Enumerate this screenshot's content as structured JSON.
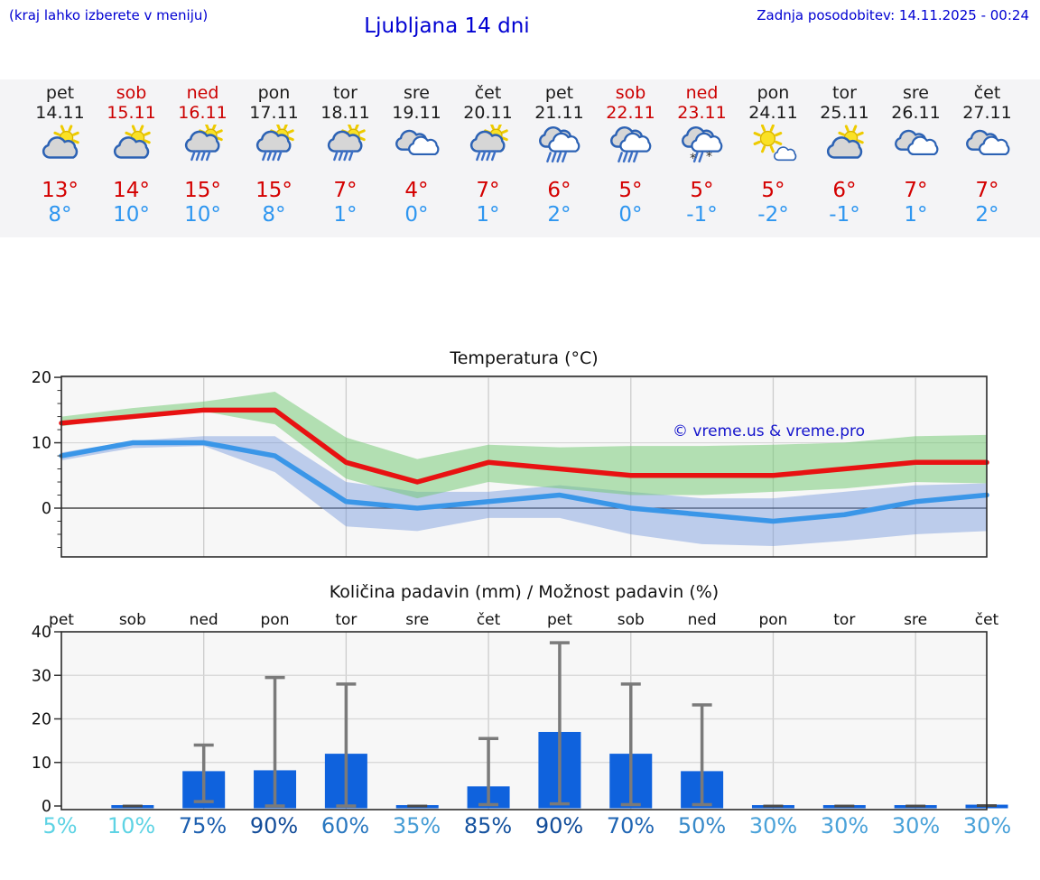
{
  "header": {
    "hint": "(kraj lahko izberete v meniju)",
    "title": "Ljubljana 14 dni",
    "last_update": "Zadnja posodobitev: 14.11.2025 - 00:24"
  },
  "colors": {
    "header_text": "#0000d2",
    "weekday_text": "#1a1a1a",
    "weekend_text": "#cc0000",
    "max_temp_text": "#d40000",
    "min_temp_text": "#2e96f0",
    "line_max": "#e81212",
    "line_min": "#3a96e8",
    "band_max": "rgba(110,200,110,0.5)",
    "band_min": "rgba(115,150,220,0.45)",
    "bar": "#0f62dd",
    "whisker": "#7a7a7a",
    "plot_bg": "#f7f7f7",
    "grid": "#cccccc",
    "axis": "#2b2b2b"
  },
  "days": [
    {
      "name": "pet",
      "date": "14.11",
      "weekend": false,
      "icon": "partly-cloudy",
      "tmax": "13°",
      "tmin": "8°"
    },
    {
      "name": "sob",
      "date": "15.11",
      "weekend": true,
      "icon": "partly-cloudy",
      "tmax": "14°",
      "tmin": "10°"
    },
    {
      "name": "ned",
      "date": "16.11",
      "weekend": true,
      "icon": "sun-cloud-rain",
      "tmax": "15°",
      "tmin": "10°"
    },
    {
      "name": "pon",
      "date": "17.11",
      "weekend": false,
      "icon": "sun-cloud-rain",
      "tmax": "15°",
      "tmin": "8°"
    },
    {
      "name": "tor",
      "date": "18.11",
      "weekend": false,
      "icon": "sun-cloud-rain",
      "tmax": "7°",
      "tmin": "1°"
    },
    {
      "name": "sre",
      "date": "19.11",
      "weekend": false,
      "icon": "cloudy",
      "tmax": "4°",
      "tmin": "0°"
    },
    {
      "name": "čet",
      "date": "20.11",
      "weekend": false,
      "icon": "sun-cloud-rain",
      "tmax": "7°",
      "tmin": "1°"
    },
    {
      "name": "pet",
      "date": "21.11",
      "weekend": false,
      "icon": "cloud-rain",
      "tmax": "6°",
      "tmin": "2°"
    },
    {
      "name": "sob",
      "date": "22.11",
      "weekend": true,
      "icon": "cloud-rain",
      "tmax": "5°",
      "tmin": "0°"
    },
    {
      "name": "ned",
      "date": "23.11",
      "weekend": true,
      "icon": "cloud-sleet",
      "tmax": "5°",
      "tmin": "-1°"
    },
    {
      "name": "pon",
      "date": "24.11",
      "weekend": false,
      "icon": "mostly-sunny",
      "tmax": "5°",
      "tmin": "-2°"
    },
    {
      "name": "tor",
      "date": "25.11",
      "weekend": false,
      "icon": "partly-cloudy",
      "tmax": "6°",
      "tmin": "-1°"
    },
    {
      "name": "sre",
      "date": "26.11",
      "weekend": false,
      "icon": "cloudy",
      "tmax": "7°",
      "tmin": "1°"
    },
    {
      "name": "čet",
      "date": "27.11",
      "weekend": false,
      "icon": "cloudy",
      "tmax": "7°",
      "tmin": "2°"
    }
  ],
  "chart_data": [
    {
      "type": "line",
      "title": "Temperatura (°C)",
      "watermark": "© vreme.us & vreme.pro",
      "categories": [
        "pet",
        "sob",
        "ned",
        "pon",
        "tor",
        "sre",
        "čet",
        "pet",
        "sob",
        "ned",
        "pon",
        "tor",
        "sre",
        "čet"
      ],
      "x_dates": [
        "14.11",
        "15.11",
        "16.11",
        "17.11",
        "18.11",
        "19.11",
        "20.11",
        "21.11",
        "22.11",
        "23.11",
        "24.11",
        "25.11",
        "26.11",
        "27.11"
      ],
      "series": [
        {
          "name": "max temperature",
          "values": [
            13,
            14,
            15,
            15,
            7,
            4,
            7,
            6,
            5,
            5,
            5,
            6,
            7,
            7
          ]
        },
        {
          "name": "min temperature",
          "values": [
            8,
            10,
            10,
            8,
            1,
            0,
            1,
            2,
            0,
            -1,
            -2,
            -1,
            1,
            2
          ]
        }
      ],
      "bands": [
        {
          "name": "max range",
          "upper": [
            14,
            15.3,
            16.3,
            17.8,
            10.8,
            7.5,
            9.7,
            9.3,
            9.5,
            9.5,
            9.7,
            10,
            11,
            11.2
          ],
          "lower": [
            12.5,
            14,
            14.8,
            12.8,
            4.5,
            1.5,
            4,
            3,
            2,
            2,
            2.5,
            3,
            4,
            3.8
          ]
        },
        {
          "name": "min range",
          "upper": [
            8.5,
            10.3,
            11,
            11,
            4,
            2.5,
            2.5,
            3.5,
            2.5,
            1.5,
            1.5,
            2.5,
            3.5,
            3.8
          ],
          "lower": [
            7.3,
            9.2,
            9.5,
            5.5,
            -2.8,
            -3.5,
            -1.5,
            -1.5,
            -4,
            -5.5,
            -5.8,
            -5,
            -4,
            -3.5
          ]
        }
      ],
      "ylim": [
        -7.45,
        20.15
      ],
      "yticks": [
        0,
        10,
        20
      ],
      "grid_x_every": 2,
      "legend": "none"
    },
    {
      "type": "bar",
      "title": "Količina padavin (mm) / Možnost padavin (%)",
      "categories": [
        "pet",
        "sob",
        "ned",
        "pon",
        "tor",
        "sre",
        "čet",
        "pet",
        "sob",
        "ned",
        "pon",
        "tor",
        "sre",
        "čet"
      ],
      "values": [
        0,
        0.2,
        8,
        8.2,
        12,
        0.2,
        4.5,
        17,
        12,
        8,
        0.2,
        0.2,
        0.2,
        0.3
      ],
      "whisker_low": [
        0,
        0,
        1,
        0,
        0,
        0,
        0.3,
        0.5,
        0.3,
        0.3,
        0,
        0,
        0,
        0
      ],
      "whisker_high": [
        0,
        0.3,
        14,
        29.5,
        28,
        0.3,
        15.5,
        37.5,
        28,
        23.2,
        0.3,
        0.3,
        0.3,
        0.4
      ],
      "probabilities": [
        "5%",
        "10%",
        "75%",
        "90%",
        "60%",
        "35%",
        "85%",
        "90%",
        "70%",
        "50%",
        "30%",
        "30%",
        "30%",
        "30%"
      ],
      "prob_colors": [
        "#5ed3e4",
        "#5ed3e4",
        "#1d60b0",
        "#124c99",
        "#2a78c0",
        "#459cd5",
        "#16539f",
        "#124c99",
        "#2066b4",
        "#3789c9",
        "#4aa2d9",
        "#4aa2d9",
        "#4aa2d9",
        "#4aa2d9"
      ],
      "ylim": [
        0,
        40
      ],
      "yticks": [
        0,
        10,
        20,
        30,
        40
      ],
      "grid_x_every": 2,
      "legend": "none"
    }
  ]
}
